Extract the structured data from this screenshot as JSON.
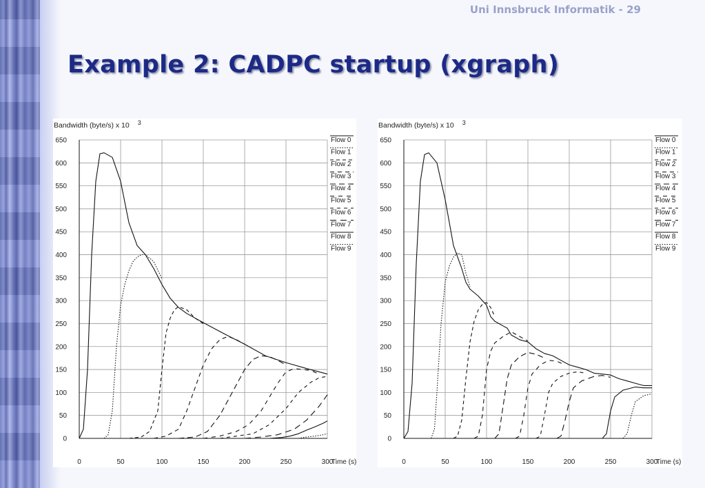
{
  "header": {
    "slide_ref": "Uni Innsbruck Informatik - 29"
  },
  "title": "Example 2: CADPC startup (xgraph)",
  "chart_data": [
    {
      "type": "line",
      "ylabel": "Bandwidth (byte/s) x 10",
      "ylabel_exp": "3",
      "xlabel": "Time (s)",
      "xlim": [
        0,
        300
      ],
      "ylim": [
        0,
        650
      ],
      "xticks": [
        0,
        50,
        100,
        150,
        200,
        250,
        300
      ],
      "yticks": [
        0,
        50,
        100,
        150,
        200,
        250,
        300,
        350,
        400,
        450,
        500,
        550,
        600,
        650
      ],
      "grid": true,
      "legend_position": "right",
      "series": [
        {
          "name": "Flow 0",
          "dash": "",
          "points": [
            [
              0,
              0
            ],
            [
              5,
              20
            ],
            [
              10,
              150
            ],
            [
              15,
              400
            ],
            [
              20,
              560
            ],
            [
              25,
              620
            ],
            [
              30,
              622
            ],
            [
              40,
              612
            ],
            [
              50,
              560
            ],
            [
              60,
              470
            ],
            [
              70,
              420
            ],
            [
              80,
              400
            ],
            [
              90,
              370
            ],
            [
              100,
              335
            ],
            [
              110,
              305
            ],
            [
              120,
              285
            ],
            [
              130,
              272
            ],
            [
              150,
              252
            ],
            [
              175,
              228
            ],
            [
              200,
              205
            ],
            [
              225,
              180
            ],
            [
              250,
              165
            ],
            [
              275,
              152
            ],
            [
              300,
              140
            ]
          ]
        },
        {
          "name": "Flow 1",
          "dash": "1.5 2",
          "points": [
            [
              30,
              0
            ],
            [
              35,
              8
            ],
            [
              40,
              60
            ],
            [
              45,
              200
            ],
            [
              50,
              290
            ],
            [
              55,
              335
            ],
            [
              60,
              365
            ],
            [
              65,
              385
            ],
            [
              70,
              395
            ],
            [
              75,
              400
            ],
            [
              80,
              400
            ],
            [
              90,
              385
            ],
            [
              100,
              348
            ]
          ]
        },
        {
          "name": "Flow 2",
          "dash": "5 4",
          "points": [
            [
              60,
              0
            ],
            [
              75,
              3
            ],
            [
              85,
              15
            ],
            [
              95,
              60
            ],
            [
              100,
              150
            ],
            [
              105,
              230
            ],
            [
              110,
              262
            ],
            [
              115,
              280
            ],
            [
              120,
              287
            ],
            [
              130,
              280
            ],
            [
              140,
              262
            ],
            [
              150,
              250
            ]
          ]
        },
        {
          "name": "Flow 3",
          "dash": "6 5",
          "points": [
            [
              90,
              0
            ],
            [
              105,
              5
            ],
            [
              120,
              20
            ],
            [
              130,
              60
            ],
            [
              140,
              110
            ],
            [
              150,
              160
            ],
            [
              160,
              195
            ],
            [
              170,
              215
            ],
            [
              180,
              222
            ],
            [
              190,
              215
            ],
            [
              200,
              205
            ]
          ]
        },
        {
          "name": "Flow 4",
          "dash": "8 5",
          "points": [
            [
              120,
              0
            ],
            [
              140,
              3
            ],
            [
              155,
              15
            ],
            [
              170,
              50
            ],
            [
              185,
              100
            ],
            [
              200,
              150
            ],
            [
              210,
              172
            ],
            [
              220,
              180
            ],
            [
              230,
              178
            ],
            [
              240,
              170
            ],
            [
              250,
              160
            ]
          ]
        },
        {
          "name": "Flow 5",
          "dash": "6 6",
          "points": [
            [
              150,
              0
            ],
            [
              170,
              5
            ],
            [
              190,
              15
            ],
            [
              205,
              30
            ],
            [
              220,
              60
            ],
            [
              230,
              90
            ],
            [
              240,
              120
            ],
            [
              250,
              145
            ],
            [
              260,
              152
            ],
            [
              280,
              148
            ],
            [
              290,
              140
            ]
          ]
        },
        {
          "name": "Flow 6",
          "dash": "5 5",
          "points": [
            [
              170,
              0
            ],
            [
              190,
              5
            ],
            [
              210,
              10
            ],
            [
              230,
              30
            ],
            [
              250,
              65
            ],
            [
              265,
              100
            ],
            [
              280,
              122
            ],
            [
              290,
              132
            ],
            [
              300,
              135
            ]
          ]
        },
        {
          "name": "Flow 7",
          "dash": "9 6",
          "points": [
            [
              200,
              0
            ],
            [
              220,
              3
            ],
            [
              240,
              8
            ],
            [
              260,
              20
            ],
            [
              275,
              40
            ],
            [
              290,
              70
            ],
            [
              300,
              95
            ]
          ]
        },
        {
          "name": "Flow 8",
          "dash": "",
          "points": [
            [
              230,
              0
            ],
            [
              245,
              2
            ],
            [
              255,
              5
            ],
            [
              265,
              10
            ],
            [
              275,
              18
            ],
            [
              285,
              25
            ],
            [
              295,
              33
            ],
            [
              300,
              38
            ]
          ]
        },
        {
          "name": "Flow 9",
          "dash": "1.5 2",
          "points": [
            [
              265,
              0
            ],
            [
              275,
              3
            ],
            [
              285,
              5
            ],
            [
              295,
              8
            ],
            [
              300,
              10
            ]
          ]
        }
      ]
    },
    {
      "type": "line",
      "ylabel": "Bandwidth (byte/s) x 10",
      "ylabel_exp": "3",
      "xlabel": "Time (s)",
      "xlim": [
        0,
        300
      ],
      "ylim": [
        0,
        650
      ],
      "xticks": [
        0,
        50,
        100,
        150,
        200,
        250,
        300
      ],
      "yticks": [
        0,
        50,
        100,
        150,
        200,
        250,
        300,
        350,
        400,
        450,
        500,
        550,
        600,
        650
      ],
      "grid": true,
      "legend_position": "right",
      "series": [
        {
          "name": "Flow 0",
          "dash": "",
          "points": [
            [
              0,
              0
            ],
            [
              5,
              15
            ],
            [
              10,
              120
            ],
            [
              15,
              380
            ],
            [
              20,
              560
            ],
            [
              25,
              618
            ],
            [
              30,
              622
            ],
            [
              40,
              600
            ],
            [
              45,
              560
            ],
            [
              50,
              520
            ],
            [
              55,
              470
            ],
            [
              60,
              420
            ],
            [
              65,
              395
            ],
            [
              70,
              370
            ],
            [
              75,
              340
            ],
            [
              80,
              325
            ],
            [
              90,
              310
            ],
            [
              95,
              300
            ],
            [
              100,
              290
            ],
            [
              105,
              265
            ],
            [
              110,
              255
            ],
            [
              115,
              250
            ],
            [
              120,
              245
            ],
            [
              125,
              240
            ],
            [
              130,
              225
            ],
            [
              135,
              220
            ],
            [
              140,
              215
            ],
            [
              150,
              210
            ],
            [
              160,
              195
            ],
            [
              170,
              185
            ],
            [
              180,
              180
            ],
            [
              190,
              170
            ],
            [
              200,
              160
            ],
            [
              210,
              155
            ],
            [
              220,
              150
            ],
            [
              230,
              142
            ],
            [
              240,
              140
            ],
            [
              250,
              138
            ],
            [
              260,
              130
            ],
            [
              270,
              125
            ],
            [
              280,
              120
            ],
            [
              290,
              115
            ],
            [
              300,
              115
            ]
          ]
        },
        {
          "name": "Flow 1",
          "dash": "1.5 2",
          "points": [
            [
              33,
              0
            ],
            [
              37,
              20
            ],
            [
              40,
              100
            ],
            [
              45,
              250
            ],
            [
              50,
              340
            ],
            [
              55,
              375
            ],
            [
              60,
              395
            ],
            [
              65,
              404
            ],
            [
              70,
              400
            ],
            [
              75,
              360
            ],
            [
              80,
              330
            ]
          ]
        },
        {
          "name": "Flow 2",
          "dash": "5 4",
          "points": [
            [
              60,
              0
            ],
            [
              65,
              5
            ],
            [
              70,
              40
            ],
            [
              75,
              130
            ],
            [
              80,
              210
            ],
            [
              85,
              255
            ],
            [
              90,
              280
            ],
            [
              95,
              292
            ],
            [
              100,
              296
            ],
            [
              105,
              285
            ],
            [
              110,
              265
            ]
          ]
        },
        {
          "name": "Flow 3",
          "dash": "6 5",
          "points": [
            [
              85,
              0
            ],
            [
              90,
              5
            ],
            [
              95,
              50
            ],
            [
              100,
              150
            ],
            [
              105,
              190
            ],
            [
              110,
              208
            ],
            [
              120,
              222
            ],
            [
              130,
              232
            ],
            [
              140,
              222
            ],
            [
              150,
              212
            ]
          ]
        },
        {
          "name": "Flow 4",
          "dash": "8 5",
          "points": [
            [
              110,
              0
            ],
            [
              115,
              10
            ],
            [
              120,
              70
            ],
            [
              125,
              130
            ],
            [
              130,
              160
            ],
            [
              140,
              178
            ],
            [
              150,
              187
            ],
            [
              160,
              183
            ],
            [
              170,
              175
            ]
          ]
        },
        {
          "name": "Flow 5",
          "dash": "6 6",
          "points": [
            [
              135,
              0
            ],
            [
              140,
              5
            ],
            [
              145,
              50
            ],
            [
              150,
              110
            ],
            [
              155,
              140
            ],
            [
              165,
              160
            ],
            [
              175,
              170
            ],
            [
              185,
              168
            ],
            [
              195,
              160
            ]
          ]
        },
        {
          "name": "Flow 6",
          "dash": "5 5",
          "points": [
            [
              160,
              0
            ],
            [
              165,
              5
            ],
            [
              170,
              50
            ],
            [
              175,
              100
            ],
            [
              180,
              120
            ],
            [
              190,
              135
            ],
            [
              200,
              142
            ],
            [
              210,
              145
            ],
            [
              220,
              142
            ]
          ]
        },
        {
          "name": "Flow 7",
          "dash": "9 6",
          "points": [
            [
              185,
              0
            ],
            [
              190,
              5
            ],
            [
              195,
              40
            ],
            [
              200,
              80
            ],
            [
              205,
              110
            ],
            [
              215,
              125
            ],
            [
              230,
              135
            ],
            [
              240,
              137
            ],
            [
              250,
              133
            ]
          ]
        },
        {
          "name": "Flow 8",
          "dash": "",
          "points": [
            [
              240,
              0
            ],
            [
              245,
              10
            ],
            [
              250,
              60
            ],
            [
              255,
              90
            ],
            [
              265,
              105
            ],
            [
              280,
              112
            ],
            [
              290,
              110
            ],
            [
              300,
              110
            ]
          ]
        },
        {
          "name": "Flow 9",
          "dash": "1.5 2",
          "points": [
            [
              265,
              0
            ],
            [
              270,
              10
            ],
            [
              275,
              50
            ],
            [
              280,
              80
            ],
            [
              290,
              93
            ],
            [
              300,
              97
            ]
          ]
        }
      ]
    }
  ]
}
